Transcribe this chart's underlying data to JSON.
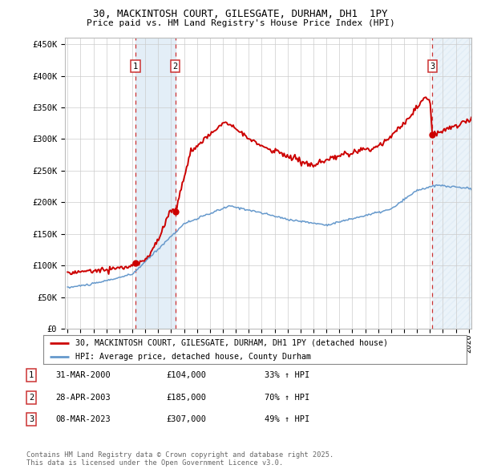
{
  "title1": "30, MACKINTOSH COURT, GILESGATE, DURHAM, DH1  1PY",
  "title2": "Price paid vs. HM Land Registry's House Price Index (HPI)",
  "ylabel_ticks": [
    "£0",
    "£50K",
    "£100K",
    "£150K",
    "£200K",
    "£250K",
    "£300K",
    "£350K",
    "£400K",
    "£450K"
  ],
  "ytick_values": [
    0,
    50000,
    100000,
    150000,
    200000,
    250000,
    300000,
    350000,
    400000,
    450000
  ],
  "xmin": 1994.8,
  "xmax": 2026.2,
  "ymin": 0,
  "ymax": 460000,
  "red_line_color": "#cc0000",
  "blue_line_color": "#6699cc",
  "shade_color": "#d8e8f4",
  "transactions": [
    {
      "date_num": 2000.24,
      "price": 104000,
      "label": "1"
    },
    {
      "date_num": 2003.32,
      "price": 185000,
      "label": "2"
    },
    {
      "date_num": 2023.18,
      "price": 307000,
      "label": "3"
    }
  ],
  "legend_red": "30, MACKINTOSH COURT, GILESGATE, DURHAM, DH1 1PY (detached house)",
  "legend_blue": "HPI: Average price, detached house, County Durham",
  "table_rows": [
    {
      "num": "1",
      "date": "31-MAR-2000",
      "price": "£104,000",
      "change": "33% ↑ HPI"
    },
    {
      "num": "2",
      "date": "28-APR-2003",
      "price": "£185,000",
      "change": "70% ↑ HPI"
    },
    {
      "num": "3",
      "date": "08-MAR-2023",
      "price": "£307,000",
      "change": "49% ↑ HPI"
    }
  ],
  "footer": "Contains HM Land Registry data © Crown copyright and database right 2025.\nThis data is licensed under the Open Government Licence v3.0.",
  "plot_bg_color": "#ffffff"
}
